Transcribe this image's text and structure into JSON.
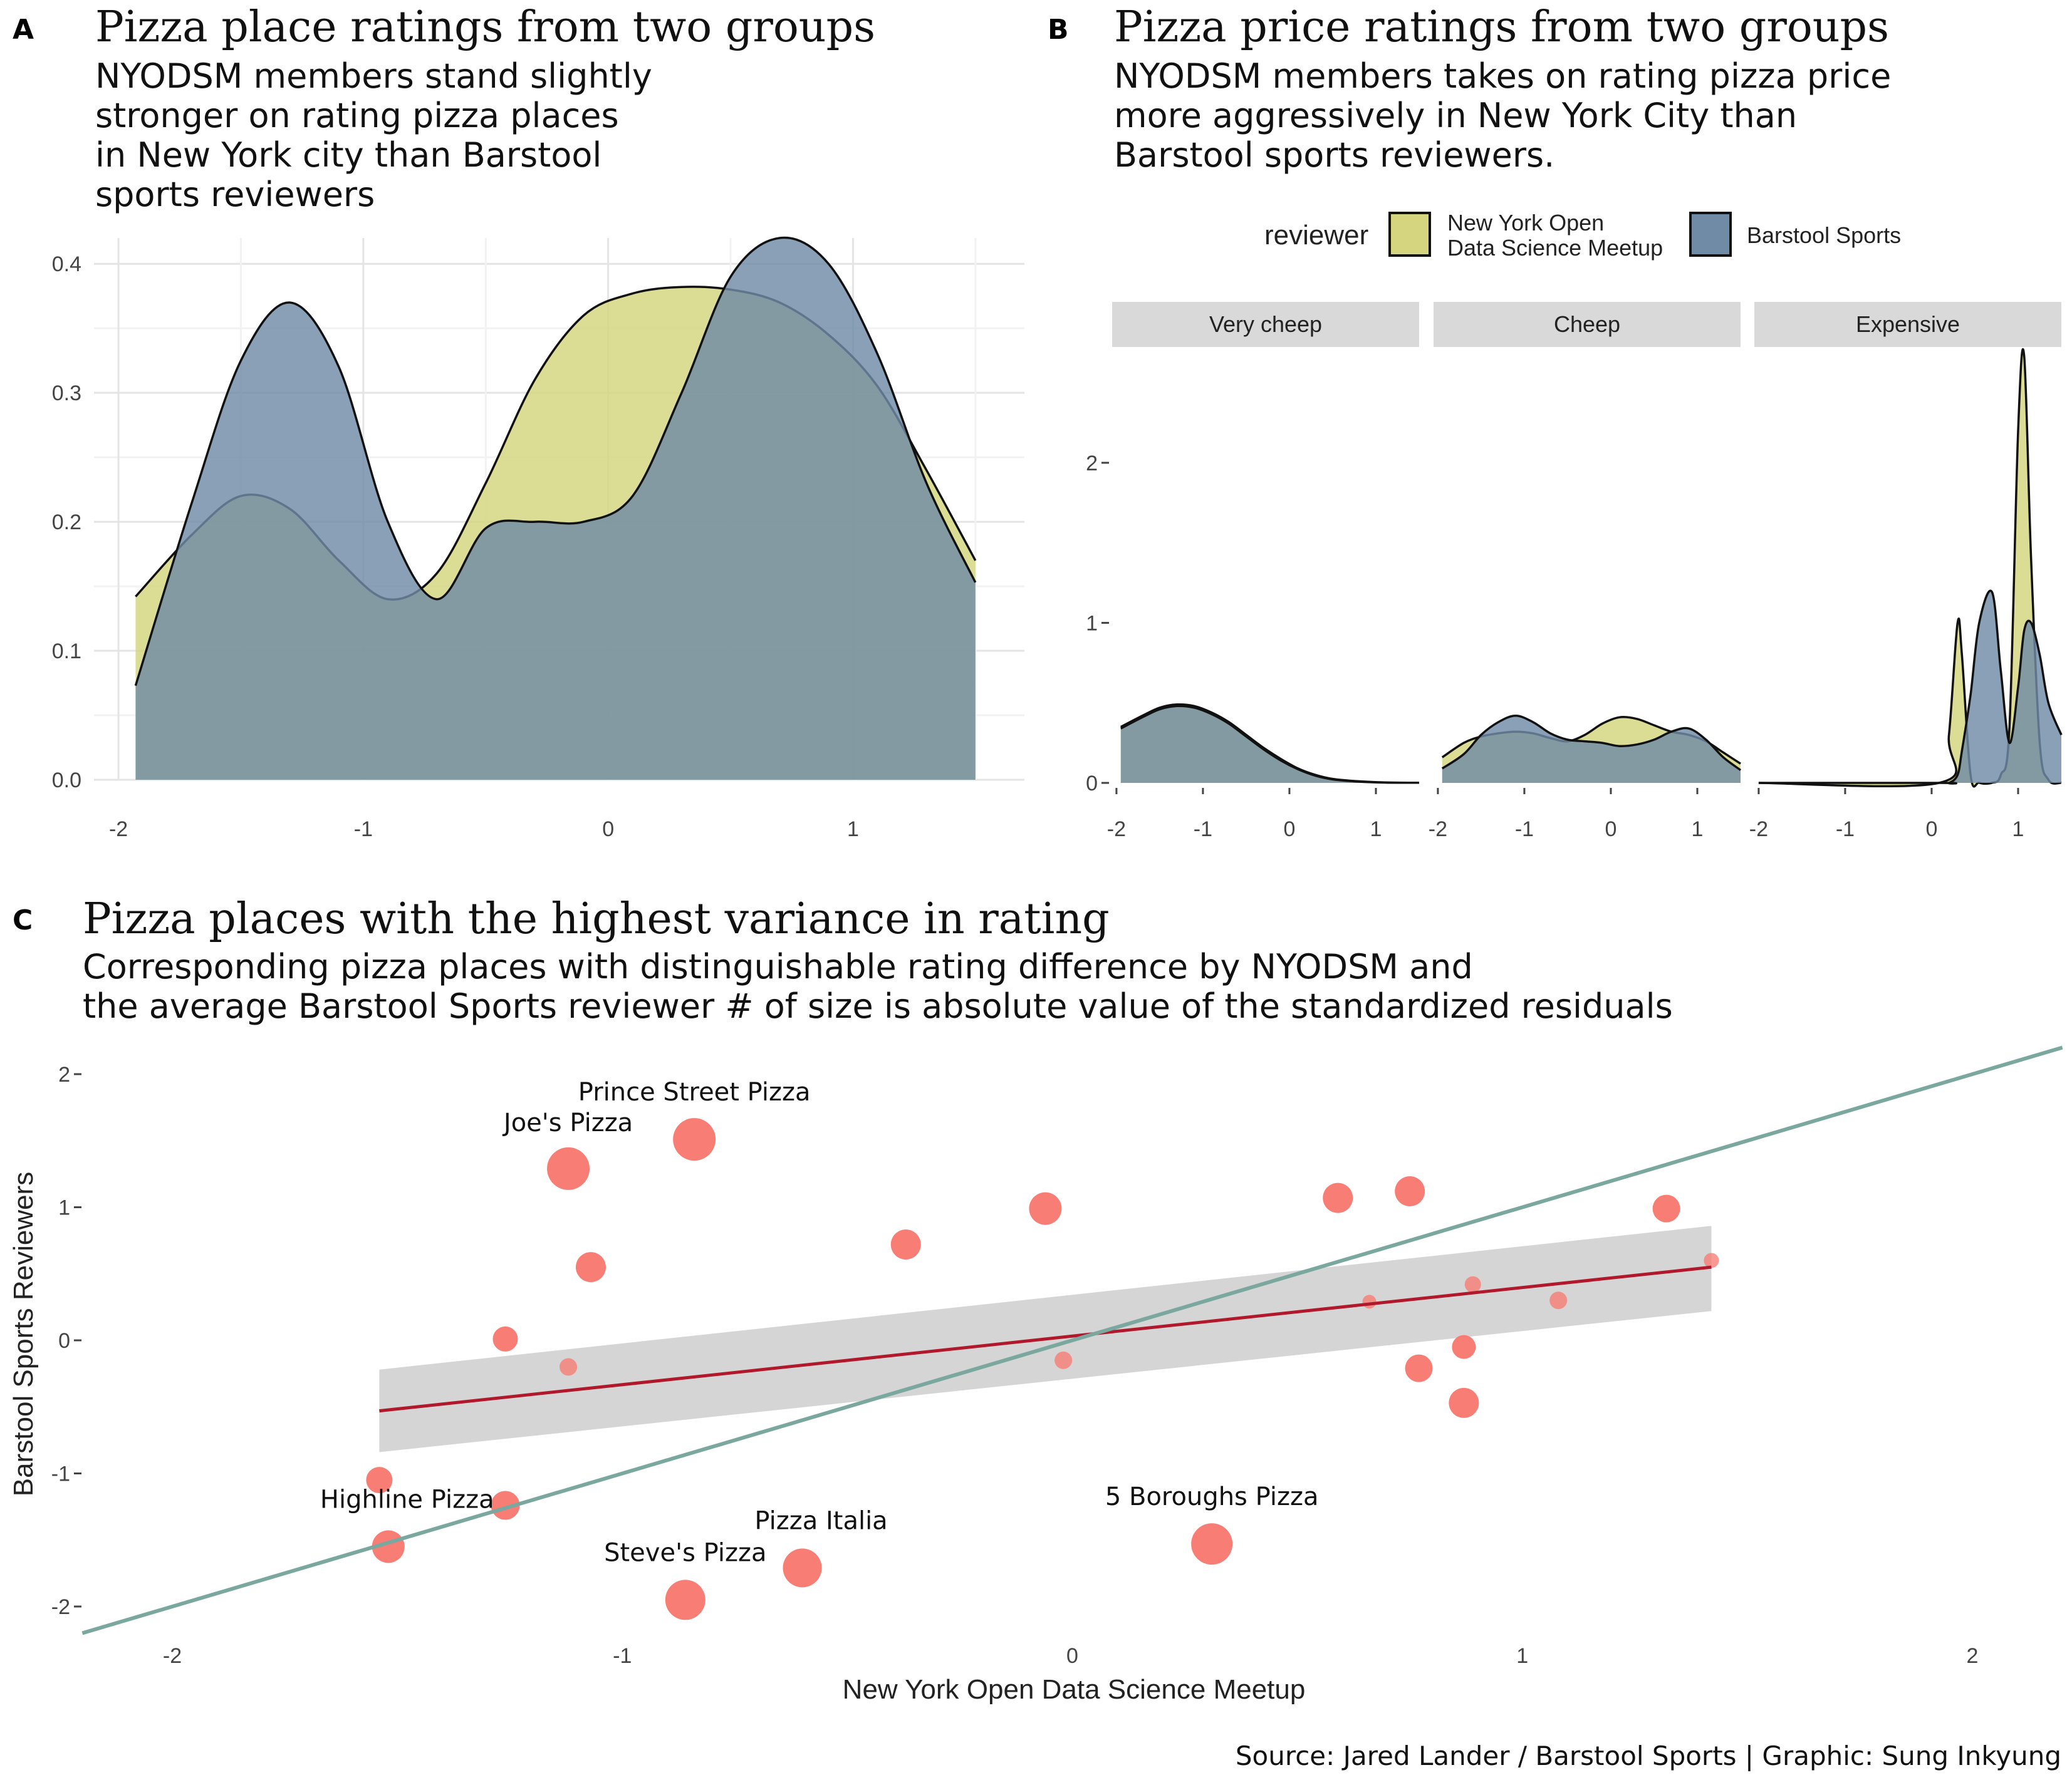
{
  "panels": {
    "A": {
      "tag": "A",
      "title": "Pizza place ratings from two groups",
      "subtitle": [
        "NYODSM members stand slightly",
        "stronger on rating pizza places",
        "in New York city than Barstool",
        "sports reviewers"
      ]
    },
    "B": {
      "tag": "B",
      "title": "Pizza price ratings from two groups",
      "subtitle": [
        "NYODSM members takes on rating pizza price",
        "more aggressively in New York City than",
        "Barstool sports reviewers."
      ]
    },
    "C": {
      "tag": "C",
      "title": "Pizza places with the highest variance in rating",
      "subtitle": [
        "Corresponding pizza places with distinguishable rating difference by NYODSM and",
        "the average Barstool Sports reviewer # of size is absolute value of the standardized residuals"
      ]
    }
  },
  "legend": {
    "title": "reviewer",
    "items": [
      {
        "label": [
          "New York Open",
          "Data Science Meetup"
        ],
        "color": "#d4d57e"
      },
      {
        "label": [
          "Barstool Sports"
        ],
        "color": "#6f8ba6"
      }
    ]
  },
  "caption": "Source: Jared Lander / Barstool Sports | Graphic: Sung Inkyung",
  "colors": {
    "nyodsm": "#d4d57e",
    "barstool": "#6f8ba6",
    "overlap": "#6b8a75",
    "points": "#f8766d",
    "fit_line": "#b2182b",
    "ribbon": "#d3d3d3",
    "identity_line": "#7aa89f"
  },
  "chart_data": [
    {
      "type": "area",
      "panel": "A",
      "xlim": [
        -2.1,
        1.7
      ],
      "ylim": [
        0,
        0.42
      ],
      "x_ticks": [
        "-2",
        "-1",
        "0",
        "1"
      ],
      "y_ticks": [
        "0.0",
        "0.1",
        "0.2",
        "0.3",
        "0.4"
      ],
      "grid": true,
      "series": [
        {
          "name": "New York Open Data Science Meetup",
          "x": [
            -1.93,
            -1.7,
            -1.5,
            -1.3,
            -1.1,
            -0.9,
            -0.7,
            -0.5,
            -0.3,
            -0.1,
            0.1,
            0.3,
            0.5,
            0.7,
            0.9,
            1.1,
            1.3,
            1.5
          ],
          "y": [
            0.142,
            0.19,
            0.22,
            0.21,
            0.17,
            0.14,
            0.16,
            0.23,
            0.31,
            0.36,
            0.377,
            0.382,
            0.38,
            0.37,
            0.345,
            0.305,
            0.24,
            0.17
          ]
        },
        {
          "name": "Barstool Sports",
          "x": [
            -1.93,
            -1.7,
            -1.5,
            -1.3,
            -1.1,
            -0.9,
            -0.7,
            -0.5,
            -0.3,
            -0.1,
            0.1,
            0.3,
            0.5,
            0.7,
            0.9,
            1.1,
            1.3,
            1.5
          ],
          "y": [
            0.073,
            0.215,
            0.325,
            0.37,
            0.32,
            0.2,
            0.14,
            0.195,
            0.2,
            0.2,
            0.22,
            0.3,
            0.39,
            0.42,
            0.4,
            0.33,
            0.23,
            0.153
          ]
        }
      ]
    },
    {
      "type": "area",
      "panel": "B",
      "facets": [
        "Very cheep",
        "Cheep",
        "Expensive"
      ],
      "xlim": [
        -2.05,
        1.5
      ],
      "ylim": [
        0,
        2.7
      ],
      "x_ticks": [
        "-2",
        "-1",
        "0",
        "1"
      ],
      "y_ticks": [
        "0",
        "1",
        "2"
      ],
      "grid": false,
      "data": [
        {
          "facet": "Very cheep",
          "x": [
            -1.95,
            -1.7,
            -1.5,
            -1.3,
            -1.1,
            -0.9,
            -0.7,
            -0.5,
            -0.3,
            -0.1,
            0.1,
            0.3,
            0.5,
            0.8,
            1.1,
            1.5
          ],
          "nyodsm": [
            0.35,
            0.42,
            0.47,
            0.49,
            0.48,
            0.44,
            0.38,
            0.3,
            0.22,
            0.15,
            0.09,
            0.05,
            0.025,
            0.01,
            0.003,
            0.001
          ],
          "barstool": [
            0.34,
            0.41,
            0.46,
            0.48,
            0.47,
            0.43,
            0.37,
            0.29,
            0.21,
            0.14,
            0.085,
            0.045,
            0.022,
            0.008,
            0.002,
            0.001
          ]
        },
        {
          "facet": "Cheep",
          "x": [
            -1.95,
            -1.7,
            -1.5,
            -1.3,
            -1.1,
            -0.9,
            -0.7,
            -0.5,
            -0.3,
            -0.1,
            0.1,
            0.3,
            0.5,
            0.7,
            0.9,
            1.1,
            1.3,
            1.5
          ],
          "nyodsm": [
            0.16,
            0.25,
            0.29,
            0.31,
            0.32,
            0.31,
            0.28,
            0.26,
            0.3,
            0.37,
            0.41,
            0.4,
            0.36,
            0.32,
            0.3,
            0.26,
            0.19,
            0.12
          ],
          "barstool": [
            0.09,
            0.18,
            0.3,
            0.38,
            0.42,
            0.38,
            0.31,
            0.27,
            0.26,
            0.25,
            0.23,
            0.24,
            0.27,
            0.32,
            0.34,
            0.27,
            0.16,
            0.08
          ]
        },
        {
          "facet": "Expensive",
          "x": [
            -2.0,
            0.1,
            0.2,
            0.3,
            0.35,
            0.45,
            0.55,
            0.7,
            0.8,
            0.9,
            1.0,
            1.07,
            1.15,
            1.25,
            1.35,
            1.5
          ],
          "nyodsm": [
            0,
            0.002,
            0.3,
            1.0,
            0.8,
            0.05,
            0.001,
            0.001,
            0.05,
            0.35,
            2.2,
            2.67,
            1.4,
            0.25,
            0.02,
            0.0
          ],
          "barstool": [
            0,
            0,
            0,
            0.05,
            0.2,
            0.55,
            1.0,
            1.19,
            0.7,
            0.25,
            0.6,
            0.95,
            1.0,
            0.8,
            0.5,
            0.3
          ]
        }
      ]
    },
    {
      "type": "scatter",
      "panel": "C",
      "xlabel": "New York Open Data Science Meetup",
      "ylabel": "Barstool Sports Reviewers",
      "xlim": [
        -2.2,
        2.2
      ],
      "ylim": [
        -2.2,
        2.2
      ],
      "x_ticks": [
        "-2",
        "-1",
        "0",
        "1",
        "2"
      ],
      "y_ticks": [
        "-2",
        "-1",
        "0",
        "1",
        "2"
      ],
      "grid": false,
      "points": [
        {
          "x": -1.12,
          "y": 1.29,
          "size": 2.6,
          "label": "Joe's Pizza"
        },
        {
          "x": -0.84,
          "y": 1.51,
          "size": 2.6,
          "label": "Prince Street Pizza"
        },
        {
          "x": -1.07,
          "y": 0.55,
          "size": 1.6,
          "label": ""
        },
        {
          "x": -0.37,
          "y": 0.72,
          "size": 1.6,
          "label": ""
        },
        {
          "x": -0.06,
          "y": 0.99,
          "size": 1.8,
          "label": ""
        },
        {
          "x": 0.59,
          "y": 1.07,
          "size": 1.6,
          "label": ""
        },
        {
          "x": 0.75,
          "y": 1.12,
          "size": 1.6,
          "label": ""
        },
        {
          "x": 1.32,
          "y": 0.99,
          "size": 1.4,
          "label": ""
        },
        {
          "x": -1.26,
          "y": 0.01,
          "size": 1.2,
          "label": ""
        },
        {
          "x": -1.12,
          "y": -0.2,
          "size": 0.6,
          "label": ""
        },
        {
          "x": -0.02,
          "y": -0.15,
          "size": 0.6,
          "label": ""
        },
        {
          "x": 0.66,
          "y": 0.29,
          "size": 0.3,
          "label": ""
        },
        {
          "x": 0.89,
          "y": 0.42,
          "size": 0.5,
          "label": ""
        },
        {
          "x": 1.08,
          "y": 0.3,
          "size": 0.6,
          "label": ""
        },
        {
          "x": 1.42,
          "y": 0.6,
          "size": 0.4,
          "label": ""
        },
        {
          "x": 0.87,
          "y": -0.05,
          "size": 1.1,
          "label": ""
        },
        {
          "x": 0.77,
          "y": -0.21,
          "size": 1.4,
          "label": ""
        },
        {
          "x": 0.87,
          "y": -0.47,
          "size": 1.6,
          "label": ""
        },
        {
          "x": -1.54,
          "y": -1.05,
          "size": 1.3,
          "label": ""
        },
        {
          "x": -1.26,
          "y": -1.24,
          "size": 1.5,
          "label": ""
        },
        {
          "x": -1.52,
          "y": -1.55,
          "size": 1.8,
          "label": "Highline Pizza"
        },
        {
          "x": -0.6,
          "y": -1.71,
          "size": 2.3,
          "label": "Pizza Italia"
        },
        {
          "x": -0.86,
          "y": -1.95,
          "size": 2.4,
          "label": "Steve's Pizza"
        },
        {
          "x": 0.31,
          "y": -1.53,
          "size": 2.5,
          "label": "5 Boroughs Pizza"
        }
      ],
      "fit_line": {
        "x": [
          -1.54,
          1.42
        ],
        "y": [
          -0.53,
          0.55
        ]
      },
      "ribbon": {
        "x": [
          -1.54,
          1.42
        ],
        "upper": [
          -0.22,
          0.86
        ],
        "lower": [
          -0.84,
          0.22
        ]
      },
      "identity_line": {
        "x": [
          -2.2,
          2.2
        ],
        "y": [
          -2.2,
          2.2
        ]
      }
    }
  ]
}
